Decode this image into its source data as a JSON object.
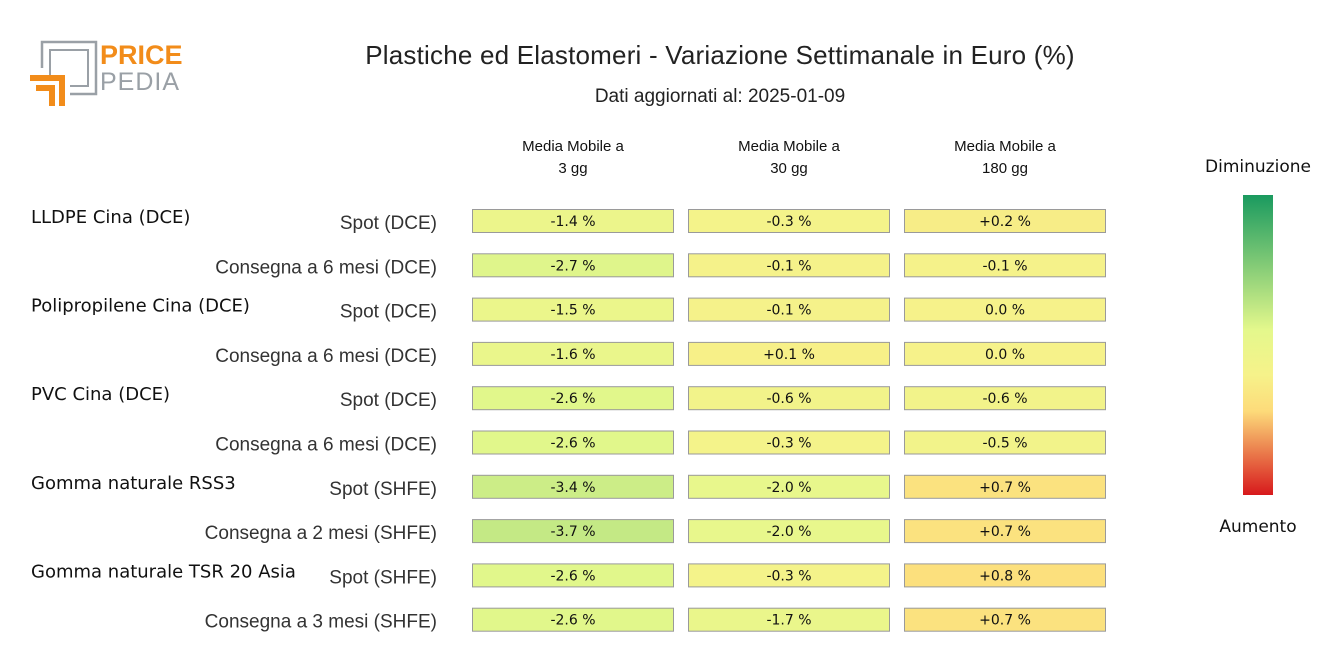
{
  "brand": {
    "line1": "PRICE",
    "line2": "PEDIA"
  },
  "header": {
    "title": "Plastiche ed Elastomeri - Variazione Settimanale in Euro (%)",
    "subtitle": "Dati aggiornati al: 2025-01-09"
  },
  "colors": {
    "brand_orange": "#F28C1A",
    "brand_gray": "#9AA0A6",
    "scale_top": "#1A9A5F",
    "scale_mid_low": "#E4F88C",
    "scale_mid": "#F6F28A",
    "scale_mid_high": "#FDDB7A",
    "scale_bottom": "#D7191C"
  },
  "chart_data": {
    "type": "table",
    "title": "Plastiche ed Elastomeri - Variazione Settimanale in Euro (%)",
    "subtitle": "Dati aggiornati al: 2025-01-09",
    "columns": [
      {
        "line1": "Media Mobile a",
        "line2": "3 gg"
      },
      {
        "line1": "Media Mobile a",
        "line2": "30 gg"
      },
      {
        "line1": "Media Mobile a",
        "line2": "180 gg"
      }
    ],
    "unit": "%",
    "groups": [
      {
        "name": "LLDPE Cina (DCE)",
        "rows": [
          {
            "label": "Spot (DCE)",
            "values": [
              -1.4,
              -0.3,
              0.2
            ],
            "display": [
              "-1.4 %",
              "-0.3 %",
              "+0.2 %"
            ]
          },
          {
            "label": "Consegna a 6 mesi (DCE)",
            "values": [
              -2.7,
              -0.1,
              -0.1
            ],
            "display": [
              "-2.7 %",
              "-0.1 %",
              "-0.1 %"
            ]
          }
        ]
      },
      {
        "name": "Polipropilene Cina (DCE)",
        "rows": [
          {
            "label": "Spot (DCE)",
            "values": [
              -1.5,
              -0.1,
              0.0
            ],
            "display": [
              "-1.5 %",
              "-0.1 %",
              "0.0 %"
            ]
          },
          {
            "label": "Consegna a 6 mesi (DCE)",
            "values": [
              -1.6,
              0.1,
              0.0
            ],
            "display": [
              "-1.6 %",
              "+0.1 %",
              "0.0 %"
            ]
          }
        ]
      },
      {
        "name": "PVC Cina (DCE)",
        "rows": [
          {
            "label": "Spot (DCE)",
            "values": [
              -2.6,
              -0.6,
              -0.6
            ],
            "display": [
              "-2.6 %",
              "-0.6 %",
              "-0.6 %"
            ]
          },
          {
            "label": "Consegna a 6 mesi (DCE)",
            "values": [
              -2.6,
              -0.3,
              -0.5
            ],
            "display": [
              "-2.6 %",
              "-0.3 %",
              "-0.5 %"
            ]
          }
        ]
      },
      {
        "name": "Gomma naturale RSS3",
        "rows": [
          {
            "label": "Spot (SHFE)",
            "values": [
              -3.4,
              -2.0,
              0.7
            ],
            "display": [
              "-3.4 %",
              "-2.0 %",
              "+0.7 %"
            ]
          },
          {
            "label": "Consegna a 2 mesi (SHFE)",
            "values": [
              -3.7,
              -2.0,
              0.7
            ],
            "display": [
              "-3.7 %",
              "-2.0 %",
              "+0.7 %"
            ]
          }
        ]
      },
      {
        "name": "Gomma naturale TSR 20 Asia",
        "rows": [
          {
            "label": "Spot (SHFE)",
            "values": [
              -2.6,
              -0.3,
              0.8
            ],
            "display": [
              "-2.6 %",
              "-0.3 %",
              "+0.8 %"
            ]
          },
          {
            "label": "Consegna a 3 mesi (SHFE)",
            "values": [
              -2.6,
              -1.7,
              0.7
            ],
            "display": [
              "-2.6 %",
              "-1.7 %",
              "+0.7 %"
            ]
          }
        ]
      }
    ],
    "legend": {
      "top_label": "Diminuzione",
      "bottom_label": "Aumento",
      "placement": "right"
    }
  }
}
